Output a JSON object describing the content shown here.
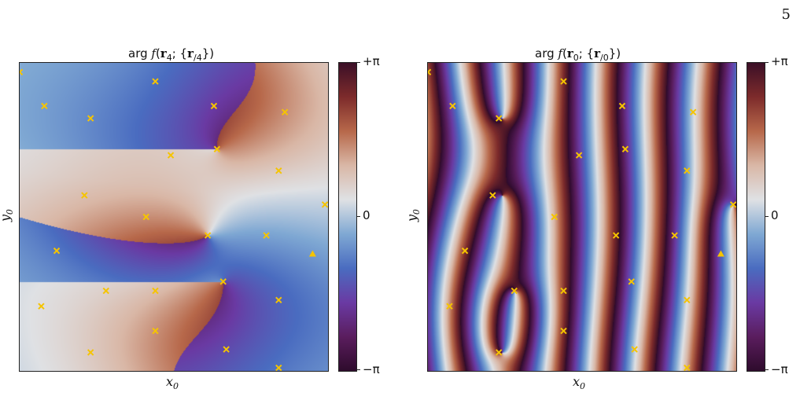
{
  "page_number": "5",
  "colors": {
    "marker": "#f5c400"
  },
  "colormap": [
    "#2e0b2c",
    "#5a1d5e",
    "#6a3aa3",
    "#4a6cc0",
    "#7fa8d3",
    "#dfe1e4",
    "#d9b7a6",
    "#b7684a",
    "#7d2b2b",
    "#3b0f27"
  ],
  "chart_data": [
    {
      "type": "heatmap",
      "title": {
        "prefix": "arg ",
        "func": "f",
        "open": "(",
        "r": "r",
        "sub1": "4",
        "mid": "; {",
        "r2": "r",
        "sub2": "/4",
        "close": "})"
      },
      "xlabel": "x",
      "xlabel_sub": "0",
      "ylabel": "y",
      "ylabel_sub": "0",
      "colorbar": {
        "ticks": [
          "+π",
          "0",
          "−π"
        ],
        "range": [
          -3.1416,
          3.1416
        ]
      },
      "markers": [
        {
          "x": 0.0,
          "y": 0.97,
          "shape": "x"
        },
        {
          "x": 0.44,
          "y": 0.94,
          "shape": "x"
        },
        {
          "x": 0.08,
          "y": 0.86,
          "shape": "x"
        },
        {
          "x": 0.63,
          "y": 0.86,
          "shape": "x"
        },
        {
          "x": 0.23,
          "y": 0.82,
          "shape": "x"
        },
        {
          "x": 0.86,
          "y": 0.84,
          "shape": "x"
        },
        {
          "x": 0.64,
          "y": 0.72,
          "shape": "x"
        },
        {
          "x": 0.49,
          "y": 0.7,
          "shape": "x"
        },
        {
          "x": 0.84,
          "y": 0.65,
          "shape": "x"
        },
        {
          "x": 0.21,
          "y": 0.57,
          "shape": "x"
        },
        {
          "x": 0.99,
          "y": 0.54,
          "shape": "x"
        },
        {
          "x": 0.41,
          "y": 0.5,
          "shape": "x"
        },
        {
          "x": 0.61,
          "y": 0.44,
          "shape": "x"
        },
        {
          "x": 0.8,
          "y": 0.44,
          "shape": "x"
        },
        {
          "x": 0.12,
          "y": 0.39,
          "shape": "x"
        },
        {
          "x": 0.95,
          "y": 0.38,
          "shape": "triangle"
        },
        {
          "x": 0.66,
          "y": 0.29,
          "shape": "x"
        },
        {
          "x": 0.28,
          "y": 0.26,
          "shape": "x"
        },
        {
          "x": 0.44,
          "y": 0.26,
          "shape": "x"
        },
        {
          "x": 0.84,
          "y": 0.23,
          "shape": "x"
        },
        {
          "x": 0.07,
          "y": 0.21,
          "shape": "x"
        },
        {
          "x": 0.44,
          "y": 0.13,
          "shape": "x"
        },
        {
          "x": 0.67,
          "y": 0.07,
          "shape": "x"
        },
        {
          "x": 0.23,
          "y": 0.06,
          "shape": "x"
        },
        {
          "x": 0.84,
          "y": 0.01,
          "shape": "x"
        }
      ],
      "vortices": [
        {
          "x": 0.61,
          "y": 0.44,
          "charge": 1.0
        },
        {
          "x": 0.64,
          "y": 0.72,
          "charge": 0.5
        },
        {
          "x": 0.66,
          "y": 0.29,
          "charge": 0.5
        }
      ],
      "waves": 0,
      "amplitude": 0.6
    },
    {
      "type": "heatmap",
      "title": {
        "prefix": "arg ",
        "func": "f",
        "open": "(",
        "r": "r",
        "sub1": "0",
        "mid": "; {",
        "r2": "r",
        "sub2": "/0",
        "close": "})"
      },
      "xlabel": "x",
      "xlabel_sub": "0",
      "ylabel": "y",
      "ylabel_sub": "0",
      "colorbar": {
        "ticks": [
          "+π",
          "0",
          "−π"
        ],
        "range": [
          -3.1416,
          3.1416
        ]
      },
      "markers": [
        {
          "x": 0.0,
          "y": 0.97,
          "shape": "x"
        },
        {
          "x": 0.44,
          "y": 0.94,
          "shape": "x"
        },
        {
          "x": 0.08,
          "y": 0.86,
          "shape": "x"
        },
        {
          "x": 0.63,
          "y": 0.86,
          "shape": "x"
        },
        {
          "x": 0.23,
          "y": 0.82,
          "shape": "x"
        },
        {
          "x": 0.86,
          "y": 0.84,
          "shape": "x"
        },
        {
          "x": 0.64,
          "y": 0.72,
          "shape": "x"
        },
        {
          "x": 0.49,
          "y": 0.7,
          "shape": "x"
        },
        {
          "x": 0.84,
          "y": 0.65,
          "shape": "x"
        },
        {
          "x": 0.21,
          "y": 0.57,
          "shape": "x"
        },
        {
          "x": 0.99,
          "y": 0.54,
          "shape": "x"
        },
        {
          "x": 0.41,
          "y": 0.5,
          "shape": "x"
        },
        {
          "x": 0.61,
          "y": 0.44,
          "shape": "x"
        },
        {
          "x": 0.8,
          "y": 0.44,
          "shape": "x"
        },
        {
          "x": 0.12,
          "y": 0.39,
          "shape": "x"
        },
        {
          "x": 0.95,
          "y": 0.38,
          "shape": "triangle"
        },
        {
          "x": 0.66,
          "y": 0.29,
          "shape": "x"
        },
        {
          "x": 0.28,
          "y": 0.26,
          "shape": "x"
        },
        {
          "x": 0.44,
          "y": 0.26,
          "shape": "x"
        },
        {
          "x": 0.84,
          "y": 0.23,
          "shape": "x"
        },
        {
          "x": 0.07,
          "y": 0.21,
          "shape": "x"
        },
        {
          "x": 0.44,
          "y": 0.13,
          "shape": "x"
        },
        {
          "x": 0.67,
          "y": 0.07,
          "shape": "x"
        },
        {
          "x": 0.23,
          "y": 0.06,
          "shape": "x"
        },
        {
          "x": 0.84,
          "y": 0.01,
          "shape": "x"
        }
      ],
      "vortices": [
        {
          "x": 0.24,
          "y": 0.57,
          "charge": 1.0
        },
        {
          "x": 0.24,
          "y": 0.82,
          "charge": -1.0
        },
        {
          "x": 0.28,
          "y": 0.26,
          "charge": 1.0
        },
        {
          "x": 0.24,
          "y": 0.06,
          "charge": -1.0
        },
        {
          "x": 0.99,
          "y": 0.54,
          "charge": 1.0
        }
      ],
      "waves": 6.5,
      "amplitude": 1.0
    }
  ]
}
